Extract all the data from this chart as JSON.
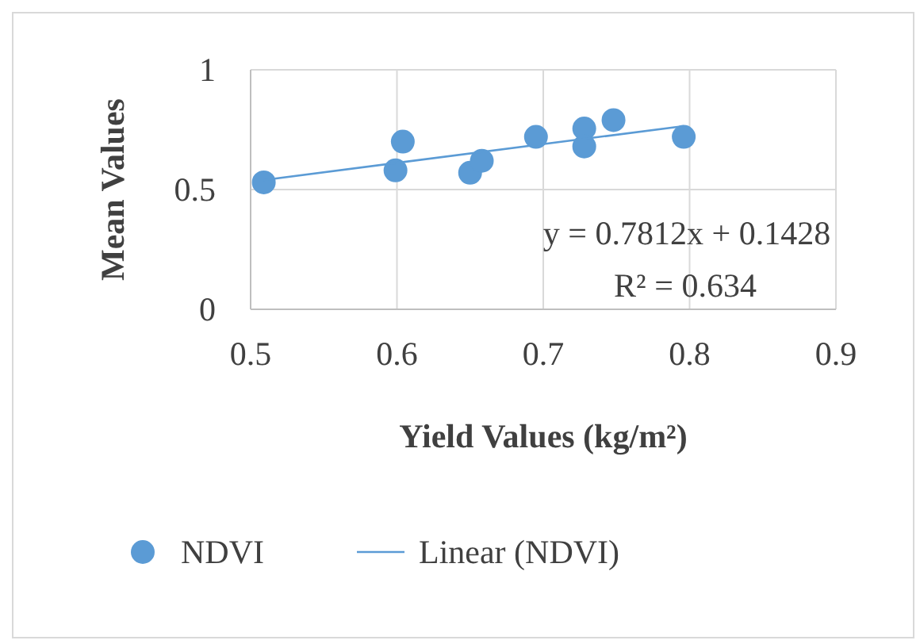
{
  "chart_data": {
    "type": "scatter",
    "xlabel": "Yield Values (kg/m²)",
    "ylabel": "Mean Values",
    "xlim": [
      0.5,
      0.9
    ],
    "xticks": [
      0.5,
      0.6,
      0.7,
      0.8,
      0.9
    ],
    "ylim": [
      0,
      1
    ],
    "yticks": [
      0,
      0.5,
      1
    ],
    "grid": true,
    "legend": "bottom",
    "marker": "circle",
    "annotations": [
      "y = 0.7812x + 0.1428",
      "R² = 0.634"
    ],
    "series": [
      {
        "name": "NDVI",
        "color": "#5b9bd5",
        "x": [
          0.509,
          0.599,
          0.604,
          0.65,
          0.658,
          0.695,
          0.728,
          0.728,
          0.748,
          0.796
        ],
        "values": [
          0.53,
          0.58,
          0.7,
          0.57,
          0.62,
          0.72,
          0.755,
          0.68,
          0.79,
          0.72
        ]
      },
      {
        "name": "Linear (NDVI)",
        "type": "line",
        "marker": "none",
        "line_style": "solid",
        "color": "#5b9bd5",
        "x": [
          0.509,
          0.796
        ],
        "values": [
          0.54,
          0.765
        ]
      }
    ]
  }
}
